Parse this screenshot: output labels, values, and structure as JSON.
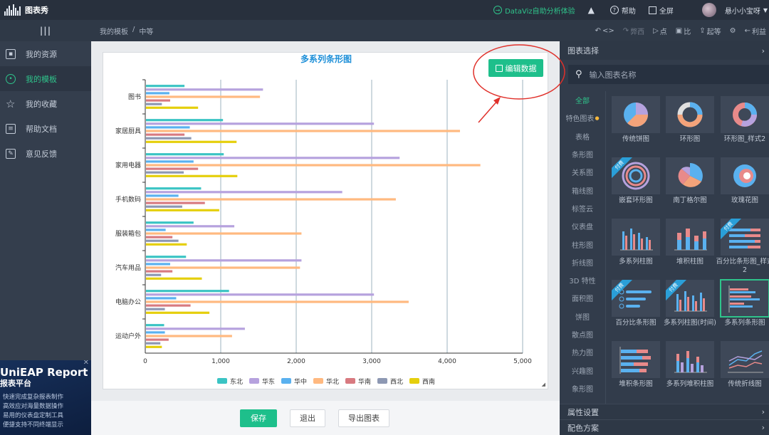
{
  "topbar": {
    "logo_text": "图表秀",
    "dataviz_label": "DataViz自助分析体验",
    "help_label": "帮助",
    "fullscreen_label": "全屏",
    "user_name": "悬小小宝呀"
  },
  "subbar": {
    "breadcrumb_parent": "我的模板",
    "breadcrumb_sep": "/",
    "breadcrumb_current": "中等",
    "undo_label": "<>",
    "redo_label": "弊西",
    "preview_label": "点",
    "save_label": "比",
    "share_label": "起等",
    "back_label": "利益"
  },
  "sidebar": {
    "items": [
      {
        "label": "我的资源",
        "icon": "image-icon"
      },
      {
        "label": "我的模板",
        "icon": "template-icon"
      },
      {
        "label": "我的收藏",
        "icon": "star-icon"
      },
      {
        "label": "帮助文档",
        "icon": "document-icon"
      },
      {
        "label": "意见反馈",
        "icon": "feedback-icon"
      }
    ],
    "ad": {
      "title": "UniEAP Report",
      "subtitle": "报表平台",
      "lines": [
        "快速完成复杂报表制作",
        "高效应对海量数据操作",
        "易用的仪表盘定制工具",
        "便捷支持不同终端显示"
      ]
    }
  },
  "canvas": {
    "edit_data_label": "编辑数据",
    "buttons": {
      "save": "保存",
      "exit": "退出",
      "export": "导出图表"
    }
  },
  "chart_data": {
    "type": "bar",
    "orientation": "horizontal",
    "title": "多系列条形图",
    "categories": [
      "图书",
      "家居厨具",
      "家用电器",
      "手机数码",
      "服装箱包",
      "汽车用品",
      "电脑办公",
      "运动户外"
    ],
    "series": [
      {
        "name": "东北",
        "color": "#3bc4c4",
        "values": [
          520,
          1030,
          1040,
          740,
          640,
          540,
          1110,
          250
        ]
      },
      {
        "name": "华东",
        "color": "#b6a2de",
        "values": [
          1560,
          3030,
          3370,
          2610,
          1180,
          2070,
          3030,
          1320
        ]
      },
      {
        "name": "华中",
        "color": "#5ab1ef",
        "values": [
          320,
          590,
          640,
          440,
          270,
          330,
          410,
          260
        ]
      },
      {
        "name": "华北",
        "color": "#ffb980",
        "values": [
          1520,
          4170,
          4440,
          3320,
          2070,
          2050,
          3490,
          1150
        ]
      },
      {
        "name": "华南",
        "color": "#d87a80",
        "values": [
          330,
          520,
          700,
          790,
          360,
          360,
          600,
          310
        ]
      },
      {
        "name": "西北",
        "color": "#8d98b3",
        "values": [
          220,
          610,
          510,
          490,
          440,
          210,
          260,
          200
        ]
      },
      {
        "name": "西南",
        "color": "#e5cf0d",
        "values": [
          700,
          1210,
          1220,
          980,
          550,
          750,
          850,
          220
        ]
      }
    ],
    "xlim": [
      0,
      5000
    ],
    "xticks": [
      "0",
      "1,000",
      "2,000",
      "3,000",
      "4,000",
      "5,000"
    ],
    "grid": true,
    "legend_position": "bottom"
  },
  "right_panel": {
    "header": "图表选择",
    "search_placeholder": "输入图表名称",
    "categories": [
      "全部",
      "特色图表",
      "表格",
      "条形图",
      "关系图",
      "箱线图",
      "标签云",
      "仪表盘",
      "柱形图",
      "折线图",
      "3D 特性",
      "面积图",
      "饼图",
      "散点图",
      "热力图",
      "兴趣图",
      "象形图"
    ],
    "tiles": [
      {
        "label": "传统饼图",
        "paid": false
      },
      {
        "label": "环形图",
        "paid": false
      },
      {
        "label": "环形图_样式2",
        "paid": false
      },
      {
        "label": "嵌套环形图",
        "paid": true
      },
      {
        "label": "南丁格尔图",
        "paid": false
      },
      {
        "label": "玫瑰花图",
        "paid": false
      },
      {
        "label": "多系列柱图",
        "paid": false
      },
      {
        "label": "堆积柱图",
        "paid": false
      },
      {
        "label": "百分比条形图_样式2",
        "paid": true
      },
      {
        "label": "百分比条形图",
        "paid": true
      },
      {
        "label": "多系列柱图(时间)",
        "paid": true
      },
      {
        "label": "多系列条形图",
        "paid": false
      },
      {
        "label": "堆积条形图",
        "paid": false
      },
      {
        "label": "多系列堆积柱图",
        "paid": false
      },
      {
        "label": "传统折线图",
        "paid": false
      }
    ],
    "paid_badge": "付费",
    "footer_attr": "属性设置",
    "footer_color": "配色方案"
  }
}
